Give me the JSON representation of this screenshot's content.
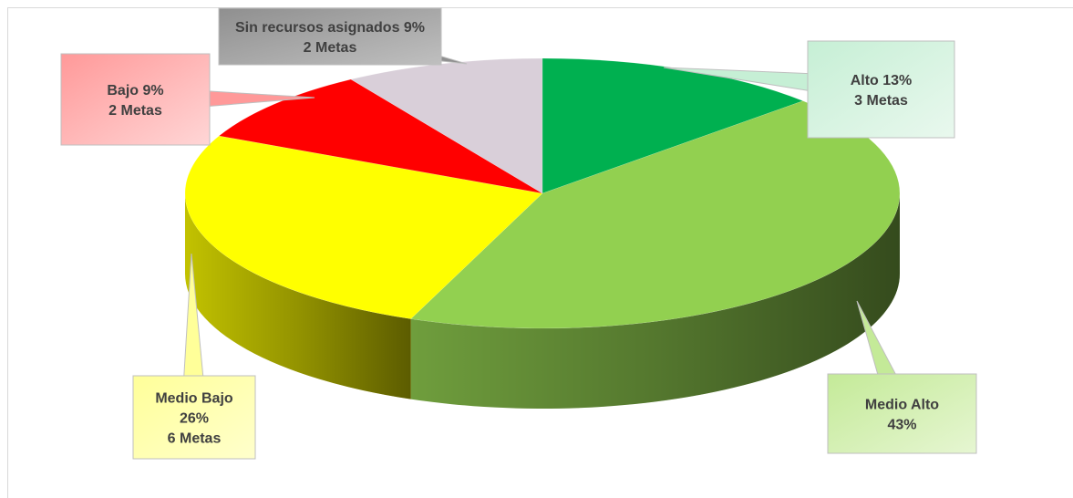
{
  "chart_data": {
    "type": "pie",
    "title": "",
    "legend": "none",
    "slices": [
      {
        "name": "Alto",
        "percent": 13,
        "metas": 3,
        "color": "#00b050",
        "label_lines": [
          "Alto 13%",
          "3 Metas"
        ]
      },
      {
        "name": "Medio Alto",
        "percent": 43,
        "metas": null,
        "color": "#92d050",
        "label_lines": [
          "Medio Alto",
          "43%"
        ]
      },
      {
        "name": "Medio Bajo",
        "percent": 26,
        "metas": 6,
        "color": "#ffff00",
        "label_lines": [
          "Medio Bajo",
          "26%",
          "6 Metas"
        ]
      },
      {
        "name": "Bajo",
        "percent": 9,
        "metas": 2,
        "color": "#ff0000",
        "label_lines": [
          "Bajo  9%",
          "2 Metas"
        ]
      },
      {
        "name": "Sin recursos asignados",
        "percent": 9,
        "metas": 2,
        "color": "#d9cfd9",
        "label_lines": [
          "Sin recursos asignados 9%",
          "2 Metas"
        ]
      }
    ]
  }
}
